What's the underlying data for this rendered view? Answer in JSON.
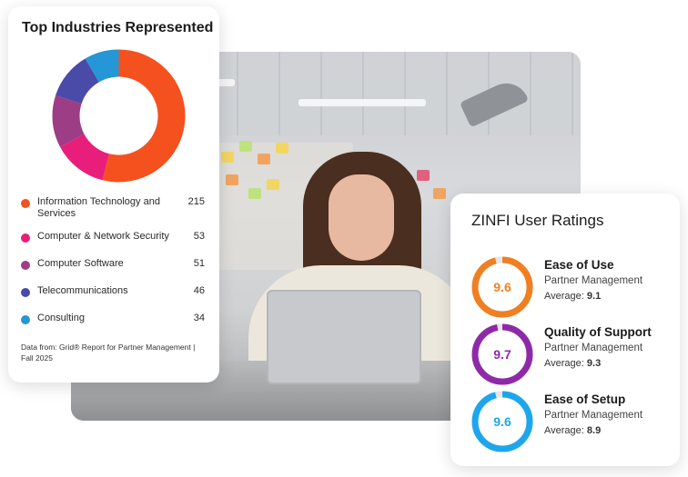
{
  "industries": {
    "title": "Top Industries Represented",
    "items": [
      {
        "label": "Information Technology and Services",
        "value": "215",
        "color": "#f4511e"
      },
      {
        "label": "Computer & Network Security",
        "value": "53",
        "color": "#e91e7a"
      },
      {
        "label": "Computer Software",
        "value": "51",
        "color": "#9c3d86"
      },
      {
        "label": "Telecommunications",
        "value": "46",
        "color": "#4a4aa8"
      },
      {
        "label": "Consulting",
        "value": "34",
        "color": "#2596d6"
      }
    ],
    "source": "Data from: Grid® Report for Partner Management | Fall 2025"
  },
  "ratings": {
    "title": "ZINFI User Ratings",
    "items": [
      {
        "name": "Ease of Use",
        "category": "Partner Management",
        "score": "9.6",
        "score_value": 9.6,
        "avg_label": "Average: ",
        "avg": "9.1",
        "color": "#f07f22"
      },
      {
        "name": "Quality of Support",
        "category": "Partner Management",
        "score": "9.7",
        "score_value": 9.7,
        "avg_label": "Average: ",
        "avg": "9.3",
        "color": "#8e2aa8"
      },
      {
        "name": "Ease of Setup",
        "category": "Partner Management",
        "score": "9.6",
        "score_value": 9.6,
        "avg_label": "Average: ",
        "avg": "8.9",
        "color": "#1ea6ec"
      }
    ]
  }
}
